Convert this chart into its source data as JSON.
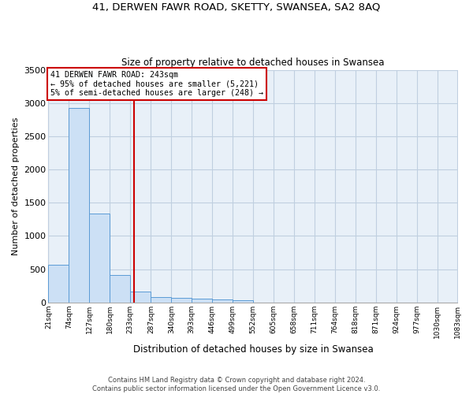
{
  "title1": "41, DERWEN FAWR ROAD, SKETTY, SWANSEA, SA2 8AQ",
  "title2": "Size of property relative to detached houses in Swansea",
  "xlabel": "Distribution of detached houses by size in Swansea",
  "ylabel": "Number of detached properties",
  "footer1": "Contains HM Land Registry data © Crown copyright and database right 2024.",
  "footer2": "Contains public sector information licensed under the Open Government Licence v3.0.",
  "bin_labels": [
    "21sqm",
    "74sqm",
    "127sqm",
    "180sqm",
    "233sqm",
    "287sqm",
    "340sqm",
    "393sqm",
    "446sqm",
    "499sqm",
    "552sqm",
    "605sqm",
    "658sqm",
    "711sqm",
    "764sqm",
    "818sqm",
    "871sqm",
    "924sqm",
    "977sqm",
    "1030sqm",
    "1083sqm"
  ],
  "bin_edges": [
    21,
    74,
    127,
    180,
    233,
    287,
    340,
    393,
    446,
    499,
    552,
    605,
    658,
    711,
    764,
    818,
    871,
    924,
    977,
    1030,
    1083
  ],
  "bar_heights": [
    570,
    2920,
    1340,
    410,
    160,
    85,
    65,
    55,
    45,
    35,
    0,
    0,
    0,
    0,
    0,
    0,
    0,
    0,
    0,
    0
  ],
  "bar_color": "#cce0f5",
  "bar_edge_color": "#5b9bd5",
  "property_size": 243,
  "annotation_line1": "41 DERWEN FAWR ROAD: 243sqm",
  "annotation_line2": "← 95% of detached houses are smaller (5,221)",
  "annotation_line3": "5% of semi-detached houses are larger (248) →",
  "vline_color": "#cc0000",
  "annotation_box_color": "#cc0000",
  "grid_color": "#c0cfe0",
  "background_color": "#e8f0f8",
  "ylim": [
    0,
    3500
  ],
  "yticks": [
    0,
    500,
    1000,
    1500,
    2000,
    2500,
    3000,
    3500
  ]
}
